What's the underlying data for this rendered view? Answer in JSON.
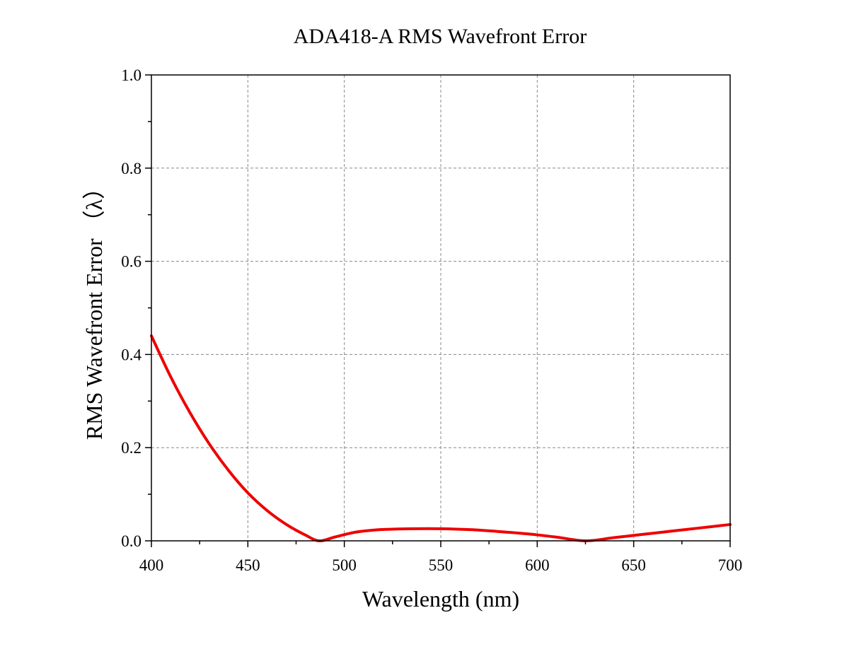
{
  "chart_data": {
    "type": "line",
    "title": "ADA418-A RMS Wavefront Error",
    "xlabel": "Wavelength (nm)",
    "ylabel": "RMS Wavefront Error （λ）",
    "xlim": [
      400,
      700
    ],
    "ylim": [
      0,
      1.0
    ],
    "x_ticks": [
      "400",
      "450",
      "500",
      "550",
      "600",
      "650",
      "700"
    ],
    "y_ticks": [
      "0.0",
      "0.2",
      "0.4",
      "0.6",
      "0.8",
      "1.0"
    ],
    "grid": true,
    "series": [
      {
        "color": "#ee0000",
        "x": [
          400,
          410,
          420,
          430,
          440,
          450,
          460,
          470,
          480,
          487,
          495,
          505,
          515,
          525,
          535,
          550,
          565,
          580,
          595,
          610,
          625,
          640,
          655,
          670,
          685,
          700
        ],
        "y": [
          0.44,
          0.352,
          0.275,
          0.208,
          0.151,
          0.103,
          0.065,
          0.035,
          0.012,
          0.0,
          0.008,
          0.018,
          0.023,
          0.025,
          0.026,
          0.026,
          0.024,
          0.02,
          0.015,
          0.008,
          0.0,
          0.007,
          0.014,
          0.021,
          0.028,
          0.035
        ]
      }
    ]
  }
}
